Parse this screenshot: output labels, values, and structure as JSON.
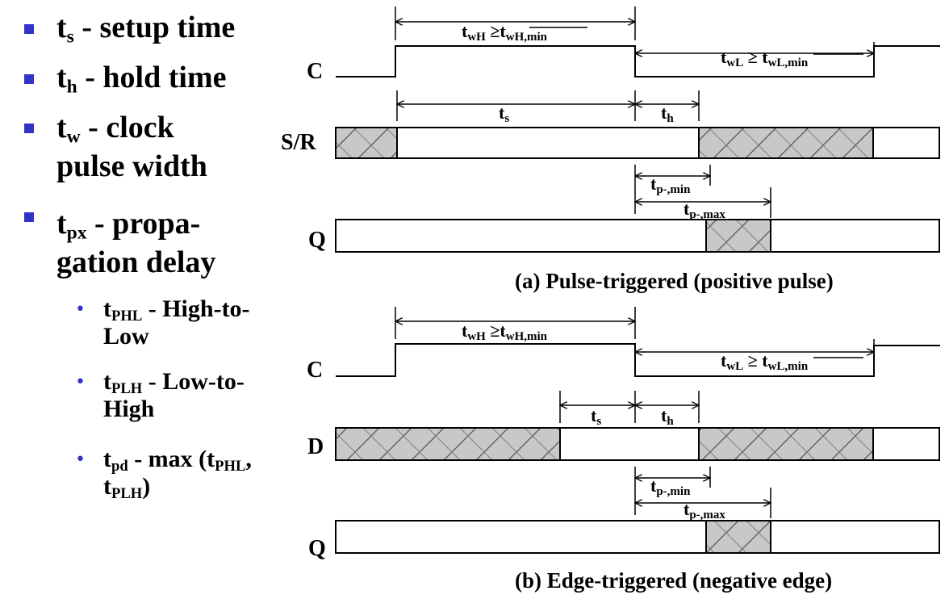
{
  "bullets": [
    {
      "sym": "t",
      "sub": "s",
      "text": " - setup time"
    },
    {
      "sym": "t",
      "sub": "h",
      "text": " - hold time"
    },
    {
      "sym": "t",
      "sub": "w",
      "text": " - clock",
      "line2": "pulse width"
    },
    {
      "sym": "t",
      "sub": "px",
      "text": " - propa-",
      "line2": "gation delay"
    }
  ],
  "sub_bullets": [
    {
      "sym": "t",
      "sub": "PHL",
      "text": " - High-to-",
      "line2": "Low"
    },
    {
      "sym": "t",
      "sub": "PLH",
      "text": " - Low-to-",
      "line2": "High"
    },
    {
      "sym": "t",
      "sub": "pd",
      "text": " - max (t",
      "sub2": "PHL",
      "text2": ",",
      "line2_sym": "t",
      "line2_sub": "PLH",
      "line2_text": ")"
    }
  ],
  "diagram_a": {
    "signals": [
      "C",
      "S/R",
      "Q"
    ],
    "caption": "(a) Pulse-triggered (positive pulse)",
    "twh": {
      "t": "t",
      "sub": "wH",
      "rel": " ≥",
      "t2": "t",
      "sub2": "wH,min"
    },
    "twl": {
      "t": "t",
      "sub": "wL",
      "rel": " ≥ ",
      "t2": "t",
      "sub2": "wL,min"
    },
    "ts": {
      "t": "t",
      "sub": "s"
    },
    "th": {
      "t": "t",
      "sub": "h"
    },
    "tpmin": {
      "t": "t",
      "sub": "p-,min"
    },
    "tpmax": {
      "t": "t",
      "sub": "p-,max"
    }
  },
  "diagram_b": {
    "signals": [
      "C",
      "D",
      "Q"
    ],
    "caption": "(b) Edge-triggered (negative edge)",
    "twh": {
      "t": "t",
      "sub": "wH",
      "rel": " ≥",
      "t2": "t",
      "sub2": "wH,min"
    },
    "twl": {
      "t": "t",
      "sub": "wL",
      "rel": " ≥ ",
      "t2": "t",
      "sub2": "wL,min"
    },
    "ts": {
      "t": "t",
      "sub": "s"
    },
    "th": {
      "t": "t",
      "sub": "h"
    },
    "tpmin": {
      "t": "t",
      "sub": "p-,min"
    },
    "tpmax": {
      "t": "t",
      "sub": "p-,max"
    }
  },
  "colors": {
    "bullet": "#3333cc",
    "hatch_fill": "#c8c8c8",
    "line": "#000000"
  }
}
